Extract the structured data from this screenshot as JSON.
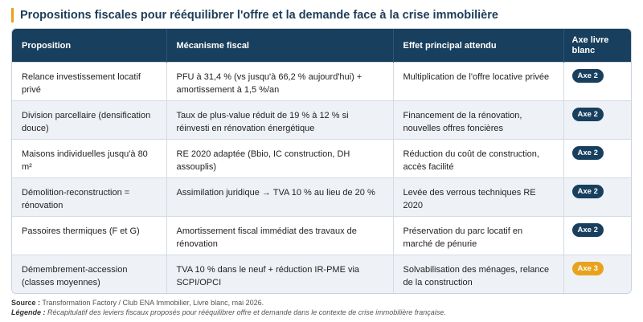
{
  "title": "Propositions fiscales pour rééquilibrer l'offre et la demande face à la crise immobilière",
  "colors": {
    "navy": "#183f5e",
    "accent": "#e8a21b",
    "row_alt": "#eef2f7"
  },
  "table": {
    "headers": [
      "Proposition",
      "Mécanisme fiscal",
      "Effet principal attendu",
      "Axe livre blanc"
    ],
    "rows": [
      {
        "proposition": "Relance investissement locatif privé",
        "mecanisme": "PFU à 31,4 % (vs jusqu'à 66,2 % aujourd'hui) + amortissement à 1,5 %/an",
        "effet": "Multiplication de l'offre locative privée",
        "axe": "Axe 2"
      },
      {
        "proposition": "Division parcellaire (densification douce)",
        "mecanisme": "Taux de plus-value réduit de 19 % à 12 % si réinvesti en rénovation énergétique",
        "effet": "Financement de la rénovation, nouvelles offres foncières",
        "axe": "Axe 2"
      },
      {
        "proposition": "Maisons individuelles jusqu'à 80 m²",
        "mecanisme": "RE 2020 adaptée (Bbio, IC construction, DH assouplis)",
        "effet": "Réduction du coût de construction, accès facilité",
        "axe": "Axe 2"
      },
      {
        "proposition": "Démolition-reconstruction = rénovation",
        "mecanisme": "Assimilation juridique → TVA 10 % au lieu de 20 %",
        "effet": "Levée des verrous techniques RE 2020",
        "axe": "Axe 2"
      },
      {
        "proposition": "Passoires thermiques (F et G)",
        "mecanisme": "Amortissement fiscal immédiat des travaux de rénovation",
        "effet": "Préservation du parc locatif en marché de pénurie",
        "axe": "Axe 2"
      },
      {
        "proposition": "Démembrement-accession (classes moyennes)",
        "mecanisme": "TVA 10 % dans le neuf + réduction IR-PME via SCPI/OPCI",
        "effet": "Solvabilisation des ménages, relance de la construction",
        "axe": "Axe 3"
      }
    ]
  },
  "footer": {
    "source_label": "Source :",
    "source_text": "Transformation Factory / Club ENA Immobilier, Livre blanc, mai 2026.",
    "legend_label": "Légende :",
    "legend_text": "Récapitulatif des leviers fiscaux proposés pour rééquilibrer offre et demande dans le contexte de crise immobilière française."
  }
}
